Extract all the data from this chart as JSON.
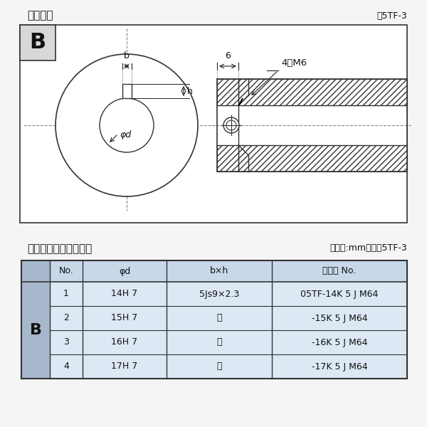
{
  "title_left": "軸穴形状",
  "title_right": "図5TF-3",
  "table_title_left": "軸穴形状コードー覧表",
  "table_title_right": "（単位:mm）　表5TF-3",
  "label_B": "B",
  "label_b": "b",
  "label_h": "h",
  "label_phid": "φd",
  "label_6": "6",
  "label_4M6": "4－M6",
  "table_header": [
    "No.",
    "φd",
    "b×h",
    "コード No."
  ],
  "table_rows": [
    [
      "1",
      "14H 7",
      "5Js9×2.3",
      "05TF-14K 5 J M64"
    ],
    [
      "2",
      "15H 7",
      "〃",
      "-15K 5 J M64"
    ],
    [
      "3",
      "16H 7",
      "〃",
      "-16K 5 J M64"
    ],
    [
      "4",
      "17H 7",
      "〃",
      "-17K 5 J M64"
    ]
  ],
  "bg_color": "#f5f5f5",
  "table_header_bg": "#c8d8e8",
  "table_row_bg": "#dce8f4",
  "table_b_bg": "#a8b8cc",
  "border_color": "#333333",
  "text_color": "#111111",
  "dim_line_color": "#222222"
}
